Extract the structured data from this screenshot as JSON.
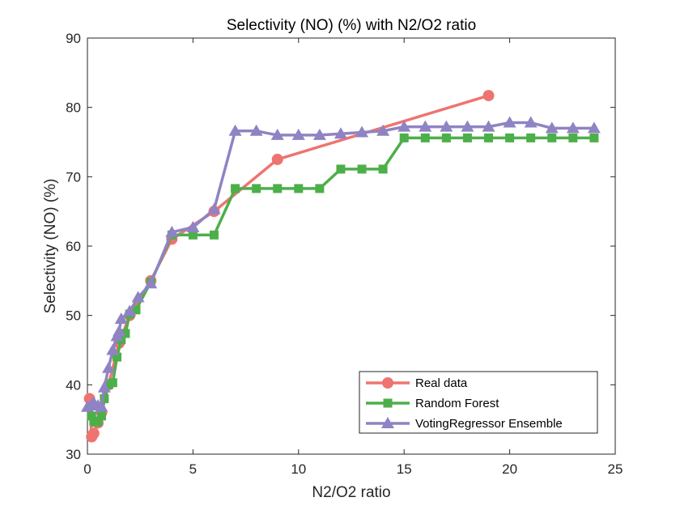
{
  "chart_data": {
    "type": "line",
    "title": "Selectivity (NO) (%) with N2/O2 ratio",
    "xlabel": "N2/O2 ratio",
    "ylabel": "Selectivity (NO) (%)",
    "xlim": [
      0,
      25
    ],
    "ylim": [
      30,
      90
    ],
    "xticks": [
      0,
      5,
      10,
      15,
      20,
      25
    ],
    "yticks": [
      30,
      40,
      50,
      60,
      70,
      80,
      90
    ],
    "grid": false,
    "legend_position": "bottom-right",
    "series": [
      {
        "name": "Real data",
        "color": "#ee7470",
        "marker": "circle",
        "x": [
          0.1,
          0.2,
          0.3,
          0.5,
          0.67,
          1.0,
          1.5,
          2.0,
          3.0,
          4.0,
          6.0,
          9.0,
          19.0
        ],
        "y": [
          38.0,
          32.5,
          33.0,
          34.5,
          36.0,
          40.0,
          46.0,
          50.0,
          55.0,
          61.0,
          65.0,
          72.5,
          81.7
        ]
      },
      {
        "name": "Random Forest",
        "color": "#4daf4a",
        "marker": "square",
        "x": [
          0.2,
          0.3,
          0.4,
          0.5,
          0.67,
          0.8,
          1.0,
          1.2,
          1.4,
          1.6,
          1.8,
          2.0,
          2.3,
          3.0,
          4.0,
          5.0,
          6.0,
          7.0,
          8.0,
          9.0,
          10.0,
          11.0,
          12.0,
          13.0,
          14.0,
          15.0,
          16.0,
          17.0,
          18.0,
          19.0,
          20.0,
          21.0,
          22.0,
          23.0,
          24.0
        ],
        "y": [
          35.5,
          34.8,
          34.6,
          34.7,
          35.5,
          38.0,
          40.0,
          40.3,
          44.0,
          46.5,
          47.4,
          50.2,
          50.8,
          54.8,
          61.6,
          61.6,
          61.6,
          68.3,
          68.3,
          68.3,
          68.3,
          68.3,
          71.1,
          71.1,
          71.1,
          75.6,
          75.6,
          75.6,
          75.6,
          75.6,
          75.6,
          75.6,
          75.6,
          75.6,
          75.6
        ]
      },
      {
        "name": "VotingRegressor Ensemble",
        "color": "#8f83c4",
        "marker": "triangle",
        "x": [
          0.0,
          0.2,
          0.3,
          0.5,
          0.67,
          0.8,
          1.0,
          1.2,
          1.4,
          1.5,
          1.6,
          2.0,
          2.4,
          3.0,
          4.0,
          5.0,
          6.0,
          7.0,
          8.0,
          9.0,
          10.0,
          11.0,
          12.0,
          13.0,
          14.0,
          15.0,
          16.0,
          17.0,
          18.0,
          19.0,
          20.0,
          21.0,
          22.0,
          23.0,
          24.0
        ],
        "y": [
          36.8,
          37.2,
          37.4,
          37.0,
          36.8,
          39.6,
          42.4,
          45.0,
          47.0,
          47.7,
          49.5,
          50.6,
          52.6,
          54.6,
          62.0,
          62.7,
          65.3,
          76.6,
          76.6,
          76.0,
          76.0,
          76.0,
          76.2,
          76.4,
          76.6,
          77.2,
          77.2,
          77.2,
          77.2,
          77.2,
          77.8,
          77.8,
          77.0,
          77.0,
          77.0
        ]
      }
    ]
  }
}
